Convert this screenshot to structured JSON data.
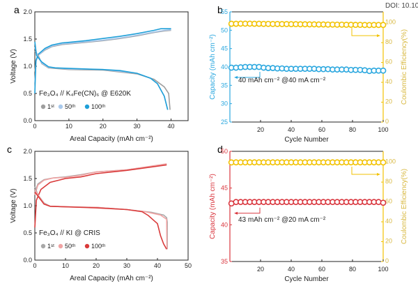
{
  "watermark": "DOI: 10.10",
  "chart_data": [
    {
      "panel": "a",
      "type": "line",
      "title": "Fe₃O₄ // K₄Fe(CN)₆ @ E620K",
      "xlabel": "Areal Capacity (mAh cm⁻²)",
      "ylabel": "Voltage (V)",
      "xlim": [
        0,
        45
      ],
      "ylim": [
        0,
        2.0
      ],
      "xticks": [
        "0",
        "10",
        "20",
        "30",
        "40"
      ],
      "yticks": [
        "0.0",
        "0.5",
        "1.0",
        "1.5",
        "2.0"
      ],
      "legend": [
        "1ˢᵗ",
        "50ᵗʰ",
        "100ᵗʰ"
      ],
      "legend_position": "bottom-left",
      "colors": [
        "#9e9e9e",
        "#a9c9ec",
        "#1e9fd8"
      ],
      "series": [
        {
          "name": "1st charge",
          "color_index": 0,
          "points": [
            [
              0,
              0.9
            ],
            [
              0.4,
              1.12
            ],
            [
              1,
              1.2
            ],
            [
              3,
              1.3
            ],
            [
              5,
              1.36
            ],
            [
              8,
              1.4
            ],
            [
              10,
              1.41
            ],
            [
              15,
              1.44
            ],
            [
              20,
              1.47
            ],
            [
              25,
              1.51
            ],
            [
              30,
              1.56
            ],
            [
              35,
              1.62
            ],
            [
              38,
              1.65
            ],
            [
              40,
              1.66
            ]
          ]
        },
        {
          "name": "50th charge",
          "color_index": 1,
          "points": [
            [
              0,
              0.7
            ],
            [
              0.4,
              1.1
            ],
            [
              1,
              1.2
            ],
            [
              3,
              1.31
            ],
            [
              5,
              1.37
            ],
            [
              8,
              1.41
            ],
            [
              10,
              1.42
            ],
            [
              15,
              1.45
            ],
            [
              20,
              1.48
            ],
            [
              25,
              1.52
            ],
            [
              30,
              1.57
            ],
            [
              35,
              1.63
            ],
            [
              38,
              1.66
            ],
            [
              40,
              1.67
            ]
          ]
        },
        {
          "name": "100th charge",
          "color_index": 2,
          "points": [
            [
              0,
              0.5
            ],
            [
              0.3,
              1.1
            ],
            [
              1,
              1.22
            ],
            [
              3,
              1.33
            ],
            [
              5,
              1.39
            ],
            [
              8,
              1.43
            ],
            [
              10,
              1.44
            ],
            [
              15,
              1.47
            ],
            [
              20,
              1.51
            ],
            [
              25,
              1.55
            ],
            [
              30,
              1.6
            ],
            [
              35,
              1.66
            ],
            [
              37,
              1.69
            ],
            [
              40,
              1.69
            ]
          ]
        },
        {
          "name": "1st discharge",
          "color_index": 0,
          "points": [
            [
              0,
              1.28
            ],
            [
              1,
              1.2
            ],
            [
              2,
              1.05
            ],
            [
              4,
              0.97
            ],
            [
              10,
              0.94
            ],
            [
              20,
              0.93
            ],
            [
              30,
              0.86
            ],
            [
              35,
              0.76
            ],
            [
              38,
              0.62
            ],
            [
              39.3,
              0.5
            ],
            [
              39.7,
              0.2
            ]
          ]
        },
        {
          "name": "50th discharge",
          "color_index": 1,
          "points": [
            [
              0,
              1.35
            ],
            [
              0.7,
              1.2
            ],
            [
              2,
              1.06
            ],
            [
              4,
              0.98
            ],
            [
              10,
              0.95
            ],
            [
              20,
              0.94
            ],
            [
              30,
              0.87
            ],
            [
              34,
              0.78
            ],
            [
              36,
              0.68
            ],
            [
              38,
              0.45
            ],
            [
              39,
              0.2
            ]
          ]
        },
        {
          "name": "100th discharge",
          "color_index": 2,
          "points": [
            [
              0,
              1.45
            ],
            [
              0.5,
              1.2
            ],
            [
              2,
              1.08
            ],
            [
              4,
              0.99
            ],
            [
              6,
              0.97
            ],
            [
              10,
              0.96
            ],
            [
              20,
              0.94
            ],
            [
              25,
              0.92
            ],
            [
              30,
              0.87
            ],
            [
              34,
              0.78
            ],
            [
              36,
              0.68
            ],
            [
              38,
              0.45
            ],
            [
              39,
              0.2
            ]
          ]
        }
      ]
    },
    {
      "panel": "b",
      "type": "scatter",
      "annotation": "40 mAh cm⁻² @40 mA cm⁻²",
      "xlabel": "Cycle Number",
      "ylabel": "Capacity (mAh cm⁻²)",
      "y2label": "Coulombic Efficiency(%)",
      "xlim": [
        0,
        100
      ],
      "ylim": [
        25,
        55
      ],
      "y2lim": [
        0,
        111
      ],
      "xticks": [
        "20",
        "40",
        "60",
        "80",
        "100"
      ],
      "yticks": [
        "25",
        "30",
        "35",
        "40",
        "45",
        "50",
        "55"
      ],
      "y2ticks": [
        "0",
        "20",
        "40",
        "60",
        "80",
        "100"
      ],
      "capacity_color": "#2aa7df",
      "ce_color": "#f2c200",
      "cycles": [
        1,
        4,
        7,
        10,
        13,
        16,
        19,
        22,
        25,
        28,
        31,
        34,
        37,
        40,
        43,
        46,
        49,
        52,
        55,
        58,
        61,
        64,
        67,
        70,
        73,
        76,
        79,
        82,
        85,
        88,
        91,
        94,
        97,
        100
      ],
      "capacity": [
        39.8,
        39.8,
        39.9,
        40.0,
        40.0,
        40.0,
        40.0,
        39.8,
        39.7,
        39.7,
        39.6,
        39.6,
        39.5,
        39.5,
        39.5,
        39.5,
        39.5,
        39.5,
        39.5,
        39.4,
        39.4,
        39.4,
        39.3,
        39.3,
        39.3,
        39.3,
        39.2,
        39.2,
        39.2,
        39.1,
        38.9,
        39.0,
        39.0,
        39.0
      ],
      "ce": [
        99.0,
        99.0,
        99.1,
        99.1,
        99.1,
        99.0,
        99.0,
        98.9,
        98.9,
        98.8,
        98.8,
        98.7,
        98.7,
        98.6,
        98.6,
        98.5,
        98.5,
        98.4,
        98.4,
        98.3,
        98.3,
        98.2,
        98.2,
        98.1,
        98.1,
        98.0,
        98.0,
        97.9,
        97.9,
        97.8,
        97.7,
        97.8,
        97.8,
        97.8
      ]
    },
    {
      "panel": "c",
      "type": "line",
      "title": "Fe₃O₄ // KI @ CRIS",
      "xlabel": "Areal Capacity (mAh cm⁻²)",
      "ylabel": "Voltage (V)",
      "xlim": [
        0,
        50
      ],
      "ylim": [
        0,
        2.0
      ],
      "xticks": [
        "0",
        "10",
        "20",
        "30",
        "40",
        "50"
      ],
      "yticks": [
        "0.0",
        "0.5",
        "1.0",
        "1.5",
        "2.0"
      ],
      "legend": [
        "1ˢᵗ",
        "50ᵗʰ",
        "100ᵗʰ"
      ],
      "legend_position": "bottom-left",
      "colors": [
        "#a8a8a8",
        "#f0a3a3",
        "#d93a3a"
      ],
      "series": [
        {
          "name": "1st charge",
          "color_index": 0,
          "points": [
            [
              0,
              1.25
            ],
            [
              1,
              1.4
            ],
            [
              3,
              1.48
            ],
            [
              6,
              1.51
            ],
            [
              10,
              1.53
            ],
            [
              15,
              1.57
            ],
            [
              20,
              1.62
            ],
            [
              30,
              1.66
            ],
            [
              43,
              1.76
            ]
          ]
        },
        {
          "name": "50th charge",
          "color_index": 1,
          "points": [
            [
              0,
              1.2
            ],
            [
              1,
              1.38
            ],
            [
              3,
              1.47
            ],
            [
              6,
              1.51
            ],
            [
              10,
              1.52
            ],
            [
              15,
              1.56
            ],
            [
              20,
              1.62
            ],
            [
              30,
              1.66
            ],
            [
              43,
              1.77
            ]
          ]
        },
        {
          "name": "100th charge",
          "color_index": 2,
          "points": [
            [
              0,
              0.6
            ],
            [
              0.5,
              1.1
            ],
            [
              2,
              1.3
            ],
            [
              5,
              1.43
            ],
            [
              10,
              1.5
            ],
            [
              15,
              1.53
            ],
            [
              20,
              1.59
            ],
            [
              30,
              1.65
            ],
            [
              43,
              1.75
            ]
          ]
        },
        {
          "name": "1st discharge",
          "color_index": 0,
          "points": [
            [
              0,
              1.35
            ],
            [
              1,
              1.2
            ],
            [
              3,
              1.05
            ],
            [
              5,
              0.99
            ],
            [
              10,
              0.98
            ],
            [
              20,
              0.97
            ],
            [
              30,
              0.93
            ],
            [
              38,
              0.88
            ],
            [
              42,
              0.83
            ],
            [
              43,
              0.78
            ],
            [
              43.2,
              0.7
            ],
            [
              43.2,
              0.2
            ]
          ]
        },
        {
          "name": "50th discharge",
          "color_index": 1,
          "points": [
            [
              0,
              1.3
            ],
            [
              1,
              1.2
            ],
            [
              3,
              1.04
            ],
            [
              5,
              0.99
            ],
            [
              10,
              0.98
            ],
            [
              20,
              0.97
            ],
            [
              30,
              0.93
            ],
            [
              36,
              0.89
            ],
            [
              41,
              0.83
            ],
            [
              43,
              0.75
            ],
            [
              43.1,
              0.2
            ]
          ]
        },
        {
          "name": "100th discharge",
          "color_index": 2,
          "points": [
            [
              0,
              1.25
            ],
            [
              1,
              1.18
            ],
            [
              3,
              1.03
            ],
            [
              5,
              0.99
            ],
            [
              10,
              0.98
            ],
            [
              20,
              0.96
            ],
            [
              30,
              0.93
            ],
            [
              35,
              0.89
            ],
            [
              37,
              0.82
            ],
            [
              39,
              0.72
            ],
            [
              40,
              0.67
            ],
            [
              41,
              0.45
            ],
            [
              42,
              0.3
            ],
            [
              43,
              0.2
            ]
          ]
        }
      ]
    },
    {
      "panel": "d",
      "type": "scatter",
      "annotation": "43 mAh cm⁻² @20 mA cm⁻²",
      "xlabel": "Cycle Number",
      "ylabel": "Capacity (mAh cm⁻²)",
      "y2label": "Coulombic Efficiency(%)",
      "xlim": [
        0,
        100
      ],
      "ylim": [
        35,
        50
      ],
      "y2lim": [
        0,
        111
      ],
      "xticks": [
        "20",
        "40",
        "60",
        "80",
        "100"
      ],
      "yticks": [
        "35",
        "40",
        "45",
        "50"
      ],
      "y2ticks": [
        "0",
        "20",
        "40",
        "60",
        "80",
        "100"
      ],
      "capacity_color": "#d9363e",
      "ce_color": "#f2c200",
      "cycles": [
        1,
        4,
        7,
        10,
        13,
        16,
        19,
        22,
        25,
        28,
        31,
        34,
        37,
        40,
        43,
        46,
        49,
        52,
        55,
        58,
        61,
        64,
        67,
        70,
        73,
        76,
        79,
        82,
        85,
        88,
        91,
        94,
        97,
        100
      ],
      "capacity": [
        42.9,
        43.1,
        43.1,
        43.1,
        43.1,
        43.1,
        43.1,
        43.1,
        43.1,
        43.1,
        43.1,
        43.1,
        43.1,
        43.1,
        43.1,
        43.1,
        43.1,
        43.1,
        43.1,
        43.1,
        43.1,
        43.1,
        43.1,
        43.1,
        43.1,
        43.1,
        43.1,
        43.1,
        43.1,
        43.1,
        43.1,
        43.1,
        43.1,
        43.0
      ],
      "ce": [
        99.8,
        99.9,
        99.9,
        99.9,
        99.9,
        99.9,
        99.9,
        99.9,
        99.9,
        99.9,
        99.9,
        99.9,
        99.9,
        99.9,
        99.9,
        99.9,
        99.9,
        99.9,
        99.9,
        99.9,
        99.9,
        99.9,
        99.9,
        99.9,
        99.9,
        99.9,
        99.9,
        99.9,
        99.9,
        99.9,
        99.9,
        99.9,
        99.9,
        99.8
      ]
    }
  ]
}
